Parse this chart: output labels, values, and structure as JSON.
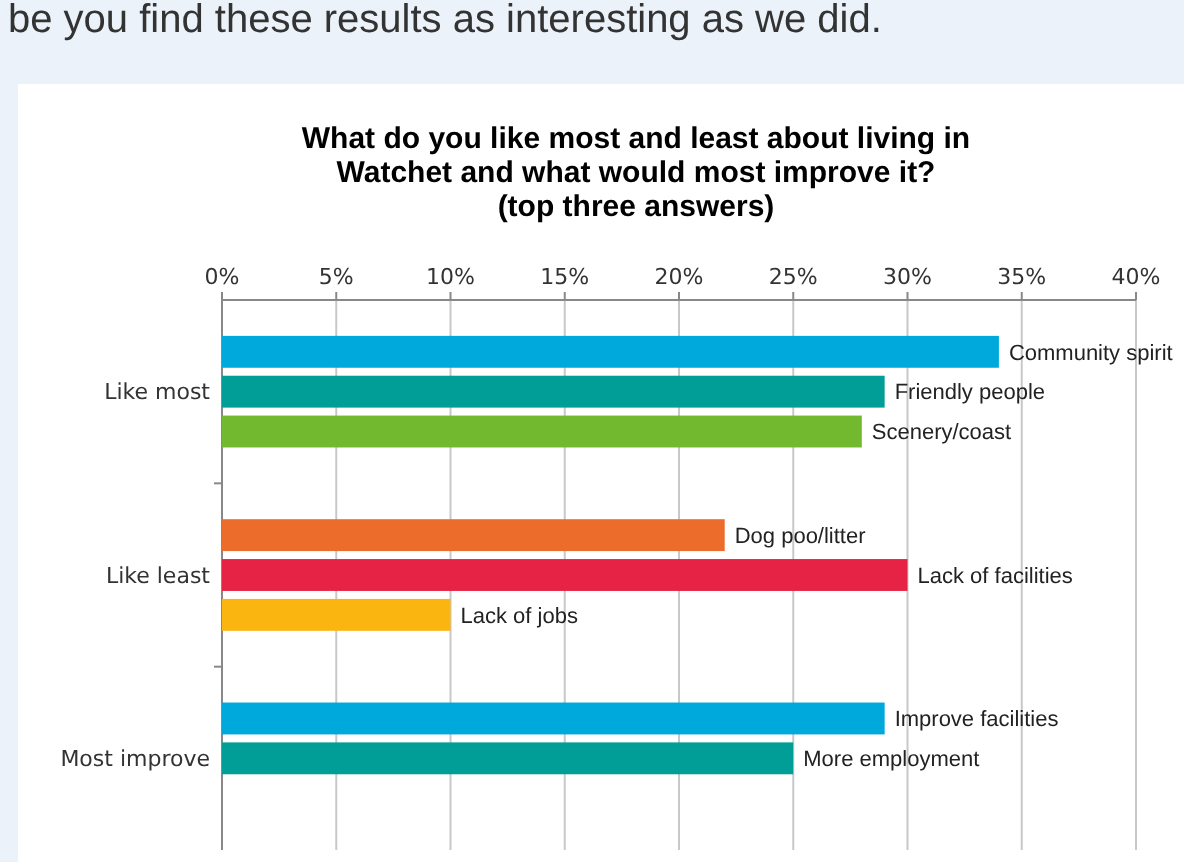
{
  "chart_data": {
    "type": "bar",
    "orientation": "horizontal",
    "title": "What do you like most and least about living in\nWatchet and what would most improve it?\n(top three answers)",
    "annotations": [
      "be you find these results as interesting as we did."
    ],
    "categories": [
      "Like most",
      "Like least",
      "Most improve"
    ],
    "series": [
      {
        "colors": [
          "#00a9dc",
          "#ec6c2b",
          "#00a9dc"
        ],
        "values": [
          34,
          22,
          29
        ],
        "value_labels": [
          "Community spirit",
          "Dog poo/litter",
          "Improve facilities"
        ]
      },
      {
        "colors": [
          "#009e96",
          "#e62345",
          "#009e96"
        ],
        "values": [
          29,
          30,
          25
        ],
        "value_labels": [
          "Friendly people",
          "Lack of facilities",
          "More employment"
        ]
      },
      {
        "colors": [
          "#72b92f",
          "#fbb511",
          null
        ],
        "values": [
          28,
          10,
          null
        ],
        "value_labels": [
          "Scenery/coast",
          "Lack of jobs",
          null
        ]
      }
    ],
    "xlim": [
      0,
      40
    ],
    "xticks": [
      {
        "value": 0,
        "label": "0%"
      },
      {
        "value": 5,
        "label": "5%"
      },
      {
        "value": 10,
        "label": "10%"
      },
      {
        "value": 15,
        "label": "15%"
      },
      {
        "value": 20,
        "label": "20%"
      },
      {
        "value": 25,
        "label": "25%"
      },
      {
        "value": 30,
        "label": "30%"
      },
      {
        "value": 35,
        "label": "35%"
      },
      {
        "value": 40,
        "label": "40%"
      }
    ],
    "grid": "x"
  }
}
